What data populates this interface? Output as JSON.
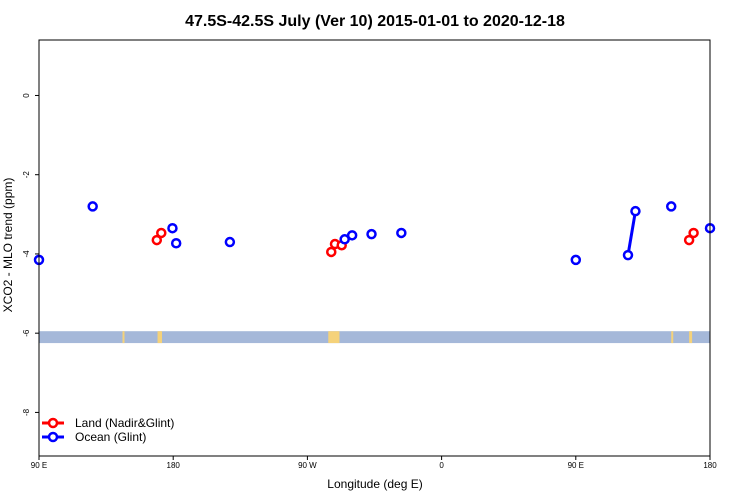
{
  "chart_data": {
    "type": "scatter",
    "title": "47.5S-42.5S July (Ver 10)   2015-01-01 to 2020-12-18",
    "xlabel": "Longitude (deg E)",
    "ylabel": "XCO2 - MLO trend (ppm)",
    "xlim": [
      90,
      540
    ],
    "ylim": [
      -9.1,
      1.4
    ],
    "x_ticks": [
      {
        "value": 90,
        "label": "90 E"
      },
      {
        "value": 180,
        "label": "180"
      },
      {
        "value": 270,
        "label": "90 W"
      },
      {
        "value": 360,
        "label": "0"
      },
      {
        "value": 450,
        "label": "90 E"
      },
      {
        "value": 540,
        "label": "180"
      }
    ],
    "y_ticks": [
      {
        "value": 0,
        "label": "0"
      },
      {
        "value": -2,
        "label": "-2"
      },
      {
        "value": -4,
        "label": "-4"
      },
      {
        "value": -6,
        "label": "-6"
      },
      {
        "value": -8,
        "label": "-8"
      }
    ],
    "series": [
      {
        "name": "Land (Nadir&Glint)",
        "color": "#ff0000",
        "points": [
          [
            169,
            -3.65
          ],
          [
            172,
            -3.47
          ],
          [
            286,
            -3.95
          ],
          [
            288.5,
            -3.75
          ],
          [
            293,
            -3.78
          ],
          [
            526,
            -3.65
          ],
          [
            529,
            -3.47
          ]
        ],
        "segments": []
      },
      {
        "name": "Ocean (Glint)",
        "color": "#0000ff",
        "points": [
          [
            90,
            -4.15
          ],
          [
            126,
            -2.8
          ],
          [
            179.5,
            -3.35
          ],
          [
            182,
            -3.73
          ],
          [
            218,
            -3.7
          ],
          [
            295,
            -3.63
          ],
          [
            300,
            -3.53
          ],
          [
            313,
            -3.5
          ],
          [
            333,
            -3.47
          ],
          [
            485,
            -4.03
          ],
          [
            490,
            -2.92
          ],
          [
            514,
            -2.8
          ],
          [
            450,
            -4.15
          ],
          [
            540,
            -3.35
          ]
        ],
        "segments": [
          [
            [
              485,
              -4.03
            ],
            [
              490,
              -2.92
            ]
          ]
        ]
      }
    ],
    "land_mask": {
      "y_range": [
        -6.25,
        -5.95
      ],
      "ocean_color": "#a5b8d9",
      "land_color": "#f5d27a",
      "land_spans": [
        [
          146,
          147
        ],
        [
          169.5,
          172.5
        ],
        [
          284,
          291.5
        ],
        [
          514,
          515
        ],
        [
          526,
          528
        ]
      ]
    },
    "legend": {
      "position": "bottom-left"
    }
  }
}
